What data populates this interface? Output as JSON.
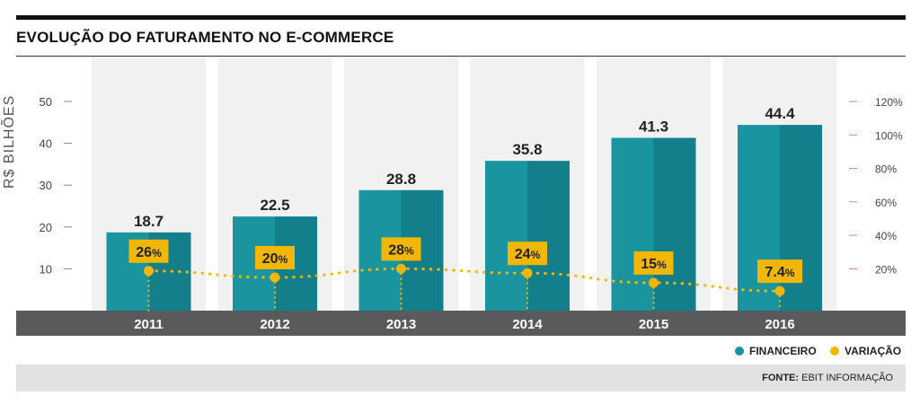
{
  "title": "EVOLUÇÃO DO FATURAMENTO NO E-COMMERCE",
  "chart_data": {
    "type": "bar",
    "title": "EVOLUÇÃO DO FATURAMENTO NO E-COMMERCE",
    "ylabel": "R$ BILHÕES",
    "categories": [
      "2011",
      "2012",
      "2013",
      "2014",
      "2015",
      "2016"
    ],
    "ylim": [
      0,
      50
    ],
    "y_ticks": [
      "10",
      "20",
      "30",
      "40",
      "50"
    ],
    "y2_ticks": [
      "20%",
      "40%",
      "60%",
      "80%",
      "100%",
      "120%"
    ],
    "series": [
      {
        "name": "FINANCEIRO",
        "type": "bar",
        "values": [
          18.7,
          22.5,
          28.8,
          35.8,
          41.3,
          44.4
        ],
        "labels": [
          "18.7",
          "22.5",
          "28.8",
          "35.8",
          "41.3",
          "44.4"
        ],
        "color": "#1a95a0"
      },
      {
        "name": "VARIAÇÃO",
        "type": "line",
        "values": [
          26,
          20,
          28,
          24,
          15,
          7.4
        ],
        "labels": [
          [
            "26",
            "%"
          ],
          [
            "20",
            "%"
          ],
          [
            "28",
            "%"
          ],
          [
            "24",
            "%"
          ],
          [
            "15",
            "%"
          ],
          [
            "7.4",
            "%"
          ]
        ],
        "color": "#f2b705"
      }
    ],
    "legend_position": "bottom-right",
    "colors": {
      "bar": "#1a95a0",
      "bar_dark": "#137f8a",
      "line": "#f2b705",
      "column_bg": "#f1f1f2",
      "axis_band": "#5a5a5c",
      "right_tick": "#e8826b"
    }
  },
  "legend": {
    "financeiro": "FINANCEIRO",
    "variacao": "VARIAÇÃO"
  },
  "source": {
    "label": "FONTE:",
    "text": "EBIT INFORMAÇÃO"
  }
}
